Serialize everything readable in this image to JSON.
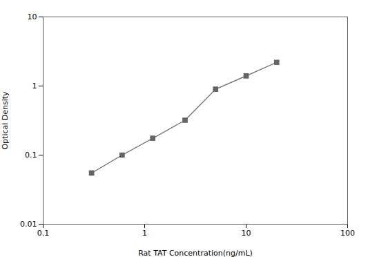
{
  "chart_data": {
    "type": "line",
    "x": [
      0.3,
      0.6,
      1.2,
      2.5,
      5.0,
      10.0,
      20.0
    ],
    "values": [
      0.055,
      0.1,
      0.175,
      0.32,
      0.9,
      1.4,
      2.2
    ],
    "xlabel": "Rat TAT Concentration(ng/mL)",
    "ylabel": "Optical Density",
    "xlim": [
      0.1,
      100
    ],
    "ylim": [
      0.01,
      10
    ],
    "xticks": [
      0.1,
      1,
      10,
      100
    ],
    "yticks": [
      0.01,
      0.1,
      1,
      10
    ],
    "log": true,
    "color": "#666666",
    "marker": "square"
  }
}
